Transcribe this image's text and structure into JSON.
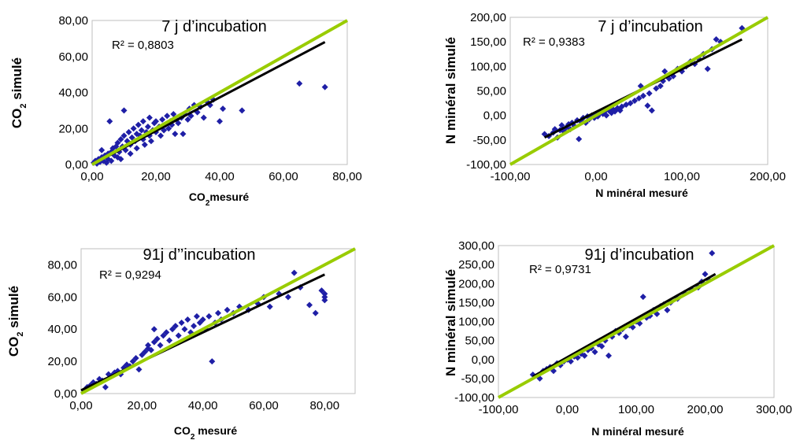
{
  "chart_data": [
    {
      "type": "scatter",
      "title": "7 j d’incubation",
      "xlabel_main": "CO",
      "xlabel_sub": "2",
      "xlabel_rest": "mesuré",
      "ylabel_main": "CO",
      "ylabel_sub": "2",
      "ylabel_rest": " simulé",
      "r2": "R² = 0,8803",
      "xlim": [
        0,
        80
      ],
      "ylim": [
        0,
        80
      ],
      "xticks": [
        0,
        20,
        40,
        60,
        80
      ],
      "yticks": [
        0,
        20,
        40,
        60,
        80
      ],
      "xtick_labels": [
        "0,00",
        "20,00",
        "40,00",
        "60,00",
        "80,00"
      ],
      "ytick_labels": [
        "0,00",
        "20,00",
        "40,00",
        "60,00",
        "80,00"
      ],
      "points": [
        [
          0.5,
          1
        ],
        [
          1,
          2
        ],
        [
          1.5,
          0.5
        ],
        [
          2,
          3
        ],
        [
          2.5,
          1.5
        ],
        [
          3,
          4
        ],
        [
          3,
          8
        ],
        [
          3.5,
          2
        ],
        [
          4,
          5
        ],
        [
          4.5,
          1
        ],
        [
          5,
          6
        ],
        [
          5,
          3
        ],
        [
          5.5,
          24
        ],
        [
          6,
          7
        ],
        [
          6,
          2
        ],
        [
          6.5,
          9
        ],
        [
          7,
          5
        ],
        [
          7.5,
          10
        ],
        [
          8,
          4
        ],
        [
          8,
          12
        ],
        [
          8.5,
          7
        ],
        [
          9,
          14
        ],
        [
          9,
          3
        ],
        [
          9.5,
          10
        ],
        [
          10,
          30
        ],
        [
          10,
          16
        ],
        [
          10.5,
          8
        ],
        [
          11,
          13
        ],
        [
          11.5,
          18
        ],
        [
          12,
          11
        ],
        [
          12,
          6
        ],
        [
          12.5,
          15
        ],
        [
          13,
          20
        ],
        [
          13.5,
          13
        ],
        [
          14,
          17
        ],
        [
          14,
          9
        ],
        [
          14.5,
          22
        ],
        [
          15,
          16
        ],
        [
          15.5,
          19
        ],
        [
          16,
          14
        ],
        [
          16,
          24
        ],
        [
          16.5,
          11
        ],
        [
          17,
          18
        ],
        [
          17.5,
          21
        ],
        [
          18,
          16
        ],
        [
          18,
          26
        ],
        [
          18.5,
          13
        ],
        [
          19,
          19
        ],
        [
          19.5,
          23
        ],
        [
          20,
          18
        ],
        [
          20,
          24
        ],
        [
          21,
          21
        ],
        [
          21.5,
          16
        ],
        [
          22,
          25
        ],
        [
          22.5,
          19
        ],
        [
          23,
          22
        ],
        [
          23.5,
          27
        ],
        [
          24,
          20
        ],
        [
          24.5,
          24
        ],
        [
          25,
          22
        ],
        [
          25.5,
          28
        ],
        [
          26,
          17
        ],
        [
          26.5,
          25
        ],
        [
          27,
          23
        ],
        [
          28,
          26
        ],
        [
          28.5,
          17
        ],
        [
          29,
          28
        ],
        [
          30,
          25
        ],
        [
          30.5,
          31
        ],
        [
          31,
          27
        ],
        [
          32,
          33
        ],
        [
          33,
          29
        ],
        [
          34,
          32
        ],
        [
          35,
          26
        ],
        [
          36,
          35
        ],
        [
          37,
          33
        ],
        [
          38,
          36
        ],
        [
          40,
          24
        ],
        [
          41,
          31
        ],
        [
          47,
          30
        ],
        [
          65,
          45
        ],
        [
          73,
          43
        ]
      ],
      "trend": {
        "x": [
          0,
          73
        ],
        "y": [
          0,
          68
        ]
      },
      "identity": {
        "x": [
          0,
          80
        ],
        "y": [
          0,
          80
        ]
      }
    },
    {
      "type": "scatter",
      "title": "7 j d’incubation",
      "xlabel_main": "N minéral mesuré",
      "ylabel_main": "N minéral simulé",
      "r2": "R² = 0,9383",
      "xlim": [
        -100,
        200
      ],
      "ylim": [
        -100,
        200
      ],
      "xticks": [
        -100,
        0,
        100,
        200
      ],
      "yticks": [
        -100,
        -50,
        0,
        50,
        100,
        150,
        200
      ],
      "xtick_labels": [
        "-100,00",
        "0,00",
        "100,00",
        "200,00"
      ],
      "ytick_labels": [
        "-100,00",
        "-50,00",
        "0,00",
        "50,00",
        "100,00",
        "150,00",
        "200,00"
      ],
      "points": [
        [
          -60,
          -38
        ],
        [
          -55,
          -42
        ],
        [
          -50,
          -35
        ],
        [
          -48,
          -28
        ],
        [
          -45,
          -45
        ],
        [
          -42,
          -30
        ],
        [
          -40,
          -20
        ],
        [
          -38,
          -32
        ],
        [
          -35,
          -25
        ],
        [
          -32,
          -18
        ],
        [
          -30,
          -28
        ],
        [
          -28,
          -15
        ],
        [
          -25,
          -22
        ],
        [
          -22,
          -10
        ],
        [
          -20,
          -48
        ],
        [
          -18,
          -12
        ],
        [
          -15,
          -5
        ],
        [
          -12,
          -15
        ],
        [
          -10,
          -2
        ],
        [
          -8,
          -8
        ],
        [
          -5,
          0
        ],
        [
          -2,
          -5
        ],
        [
          0,
          2
        ],
        [
          2,
          -2
        ],
        [
          5,
          5
        ],
        [
          8,
          3
        ],
        [
          10,
          8
        ],
        [
          12,
          0
        ],
        [
          15,
          10
        ],
        [
          18,
          5
        ],
        [
          20,
          12
        ],
        [
          22,
          8
        ],
        [
          25,
          15
        ],
        [
          28,
          10
        ],
        [
          30,
          18
        ],
        [
          35,
          22
        ],
        [
          40,
          25
        ],
        [
          45,
          30
        ],
        [
          50,
          35
        ],
        [
          52,
          60
        ],
        [
          55,
          40
        ],
        [
          60,
          20
        ],
        [
          62,
          45
        ],
        [
          65,
          10
        ],
        [
          70,
          55
        ],
        [
          75,
          60
        ],
        [
          78,
          70
        ],
        [
          80,
          90
        ],
        [
          85,
          75
        ],
        [
          90,
          80
        ],
        [
          95,
          95
        ],
        [
          100,
          90
        ],
        [
          105,
          100
        ],
        [
          110,
          110
        ],
        [
          115,
          105
        ],
        [
          120,
          115
        ],
        [
          125,
          125
        ],
        [
          130,
          95
        ],
        [
          135,
          135
        ],
        [
          140,
          155
        ],
        [
          145,
          150
        ],
        [
          170,
          178
        ]
      ],
      "trend": {
        "x": [
          -60,
          170
        ],
        "y": [
          -45,
          155
        ]
      },
      "identity": {
        "x": [
          -100,
          200
        ],
        "y": [
          -100,
          200
        ]
      }
    },
    {
      "type": "scatter",
      "title": "91j d’’incubation",
      "xlabel_main": "CO",
      "xlabel_sub": "2",
      "xlabel_rest": " mesuré",
      "ylabel_main": "CO",
      "ylabel_sub": "2",
      "ylabel_rest": " simulé",
      "r2": "R² = 0,9294",
      "xlim": [
        0,
        90
      ],
      "ylim": [
        0,
        90
      ],
      "xticks": [
        0,
        20,
        40,
        60,
        80
      ],
      "yticks": [
        0,
        20,
        40,
        60,
        80
      ],
      "xtick_labels": [
        "0,00",
        "20,00",
        "40,00",
        "60,00",
        "80,00"
      ],
      "ytick_labels": [
        "0,00",
        "20,00",
        "40,00",
        "60,00",
        "80,00"
      ],
      "points": [
        [
          1,
          2
        ],
        [
          2,
          4
        ],
        [
          3,
          5
        ],
        [
          4,
          7
        ],
        [
          5,
          6
        ],
        [
          6,
          9
        ],
        [
          7,
          8
        ],
        [
          8,
          4
        ],
        [
          9,
          12
        ],
        [
          10,
          11
        ],
        [
          11,
          13
        ],
        [
          12,
          14
        ],
        [
          13,
          12
        ],
        [
          14,
          16
        ],
        [
          15,
          18
        ],
        [
          16,
          17
        ],
        [
          17,
          20
        ],
        [
          18,
          22
        ],
        [
          19,
          15
        ],
        [
          20,
          24
        ],
        [
          21,
          26
        ],
        [
          22,
          28
        ],
        [
          22,
          30
        ],
        [
          23,
          27
        ],
        [
          24,
          32
        ],
        [
          24,
          40
        ],
        [
          25,
          34
        ],
        [
          26,
          30
        ],
        [
          27,
          36
        ],
        [
          28,
          38
        ],
        [
          29,
          33
        ],
        [
          30,
          40
        ],
        [
          31,
          42
        ],
        [
          32,
          36
        ],
        [
          33,
          44
        ],
        [
          34,
          40
        ],
        [
          35,
          46
        ],
        [
          36,
          38
        ],
        [
          37,
          42
        ],
        [
          38,
          48
        ],
        [
          39,
          44
        ],
        [
          40,
          46
        ],
        [
          41,
          40
        ],
        [
          42,
          48
        ],
        [
          43,
          20
        ],
        [
          44,
          44
        ],
        [
          45,
          50
        ],
        [
          46,
          46
        ],
        [
          48,
          52
        ],
        [
          50,
          50
        ],
        [
          52,
          54
        ],
        [
          55,
          52
        ],
        [
          58,
          56
        ],
        [
          60,
          60
        ],
        [
          62,
          54
        ],
        [
          65,
          62
        ],
        [
          68,
          60
        ],
        [
          70,
          75
        ],
        [
          72,
          66
        ],
        [
          75,
          55
        ],
        [
          77,
          50
        ],
        [
          80,
          60
        ],
        [
          80,
          62
        ],
        [
          80,
          58
        ],
        [
          79,
          64
        ]
      ],
      "trend": {
        "x": [
          0,
          80
        ],
        "y": [
          2,
          74
        ]
      },
      "identity": {
        "x": [
          0,
          90
        ],
        "y": [
          0,
          90
        ]
      }
    },
    {
      "type": "scatter",
      "title": "91j d’incubation",
      "xlabel_main": "N minéral mesuré",
      "ylabel_main": "N minéral simulé",
      "r2": "R² = 0,9731",
      "xlim": [
        -100,
        300
      ],
      "ylim": [
        -100,
        300
      ],
      "xticks": [
        -100,
        0,
        100,
        200,
        300
      ],
      "yticks": [
        -100,
        -50,
        0,
        50,
        100,
        150,
        200,
        250,
        300
      ],
      "xtick_labels": [
        "-100,00",
        "0,00",
        "100,00",
        "200,00",
        "300,00"
      ],
      "ytick_labels": [
        "-100,00",
        "-50,00",
        "0,00",
        "50,00",
        "100,00",
        "150,00",
        "200,00",
        "250,00",
        "300,00"
      ],
      "points": [
        [
          -50,
          -40
        ],
        [
          -40,
          -50
        ],
        [
          -35,
          -30
        ],
        [
          -30,
          -25
        ],
        [
          -25,
          -20
        ],
        [
          -20,
          -30
        ],
        [
          -15,
          -10
        ],
        [
          -10,
          -15
        ],
        [
          -5,
          -5
        ],
        [
          0,
          0
        ],
        [
          5,
          -5
        ],
        [
          10,
          8
        ],
        [
          15,
          5
        ],
        [
          20,
          15
        ],
        [
          25,
          10
        ],
        [
          30,
          25
        ],
        [
          35,
          30
        ],
        [
          40,
          20
        ],
        [
          45,
          40
        ],
        [
          50,
          35
        ],
        [
          55,
          50
        ],
        [
          60,
          10
        ],
        [
          65,
          60
        ],
        [
          70,
          75
        ],
        [
          75,
          70
        ],
        [
          80,
          80
        ],
        [
          85,
          60
        ],
        [
          90,
          90
        ],
        [
          95,
          85
        ],
        [
          100,
          100
        ],
        [
          105,
          95
        ],
        [
          110,
          165
        ],
        [
          115,
          110
        ],
        [
          120,
          115
        ],
        [
          125,
          130
        ],
        [
          130,
          120
        ],
        [
          135,
          140
        ],
        [
          140,
          145
        ],
        [
          145,
          130
        ],
        [
          150,
          150
        ],
        [
          160,
          160
        ],
        [
          170,
          175
        ],
        [
          180,
          185
        ],
        [
          190,
          190
        ],
        [
          195,
          205
        ],
        [
          200,
          225
        ],
        [
          205,
          210
        ],
        [
          210,
          280
        ]
      ],
      "trend": {
        "x": [
          -50,
          215
        ],
        "y": [
          -45,
          225
        ]
      },
      "identity": {
        "x": [
          -100,
          300
        ],
        "y": [
          -100,
          300
        ]
      }
    }
  ]
}
